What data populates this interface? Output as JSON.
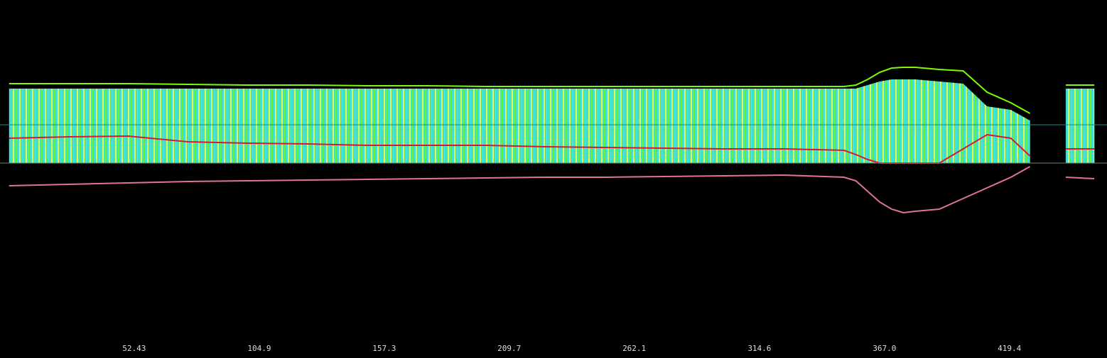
{
  "chart_data": {
    "type": "line",
    "x": [
      0,
      25,
      50,
      75,
      100,
      125,
      150,
      175,
      200,
      225,
      250,
      275,
      300,
      325,
      350,
      355,
      360,
      365,
      370,
      375,
      380,
      390,
      400,
      410,
      420,
      428,
      435,
      443,
      455
    ],
    "series": [
      {
        "color": "#40e0d0",
        "style": "area",
        "values": [
          105,
          105,
          105,
          105,
          105,
          105,
          105,
          105,
          105,
          105,
          105,
          105,
          105,
          105,
          105,
          105,
          110,
          115,
          118,
          118,
          118,
          115,
          112,
          80,
          75,
          60,
          null,
          105,
          105
        ]
      },
      {
        "color": "#7cfc00",
        "style": "line",
        "values": [
          112,
          112,
          112,
          111,
          110,
          110,
          109,
          109,
          108,
          108,
          108,
          108,
          108,
          108,
          108,
          110,
          118,
          128,
          134,
          135,
          135,
          132,
          130,
          100,
          85,
          70,
          null,
          110,
          110
        ]
      },
      {
        "color": "#dc143c",
        "style": "line",
        "values": [
          35,
          37,
          38,
          30,
          28,
          27,
          25,
          25,
          25,
          23,
          22,
          21,
          20,
          20,
          18,
          12,
          5,
          0,
          0,
          0,
          0,
          0,
          20,
          40,
          35,
          10,
          null,
          20,
          20
        ]
      },
      {
        "color": "#e070a0",
        "style": "line",
        "values": [
          -32,
          -30,
          -28,
          -26,
          -25,
          -24,
          -23,
          -22,
          -21,
          -20,
          -20,
          -19,
          -18,
          -17,
          -20,
          -25,
          -40,
          -55,
          -65,
          -70,
          -68,
          -65,
          -50,
          -35,
          -20,
          -5,
          null,
          -20,
          -22
        ]
      }
    ],
    "xlim": [
      -3.8,
      460.3
    ],
    "ylim": [
      -250,
      230
    ],
    "xticks": [
      52.43,
      104.9,
      157.3,
      209.7,
      262.1,
      314.6,
      {
        "value": 367,
        "label": "367.0"
      },
      419.4
    ]
  }
}
